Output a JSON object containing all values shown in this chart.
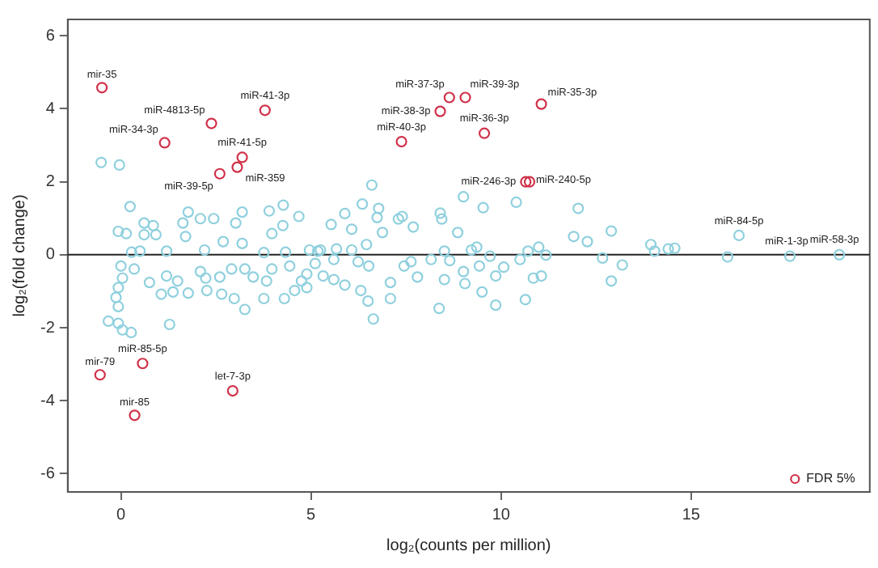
{
  "chart_data": {
    "type": "scatter",
    "xlabel": "log₂(counts per million)",
    "ylabel": "log₂(fold change)",
    "xlim": [
      -1.4,
      19.7
    ],
    "ylim": [
      -6.5,
      6.45
    ],
    "xticks": [
      0,
      5,
      10,
      15
    ],
    "yticks": [
      -6,
      -4,
      -2,
      0,
      2,
      4,
      6
    ],
    "grid": false,
    "marker": "circle",
    "legend": "bottom right",
    "ref_lines": [
      {
        "axis": "y",
        "value": 0,
        "color": "#222222"
      }
    ],
    "series": [
      {
        "color": "#8fd0de",
        "x": [
          -0.52,
          -0.04,
          0.24,
          -0.07,
          0.14,
          0.61,
          0.85,
          0.61,
          0.92,
          1.63,
          1.77,
          1.7,
          2.09,
          2.44,
          3.02,
          3.19,
          3.9,
          4.27,
          4.68,
          4.26,
          3.97,
          2.69,
          3.19,
          0.28,
          0.5,
          1.2,
          2.2,
          3.76,
          4.33,
          4.96,
          5.18,
          0,
          0.04,
          -0.07,
          -0.13,
          -0.07,
          -0.33,
          -0.07,
          0.04,
          0.27,
          0.35,
          0.75,
          1.06,
          1.28,
          1.2,
          1.49,
          1.37,
          1.77,
          2.09,
          2.23,
          2.6,
          2.26,
          2.65,
          2.98,
          3.26,
          2.91,
          3.26,
          3.48,
          3.76,
          3.97,
          3.83,
          4.3,
          4.44,
          4.75,
          4.57,
          4.89,
          5.11,
          4.89,
          6.6,
          6.35,
          6.78,
          5.89,
          6.74,
          7.3,
          7.4,
          5.53,
          6.07,
          6.88,
          7.69,
          8.4,
          8.44,
          9.01,
          9.53,
          10.4,
          8.86,
          5.25,
          5.67,
          6.07,
          6.46,
          8.51,
          9.22,
          9.36,
          9.71,
          10.71,
          10.99,
          11.18,
          5.6,
          5.6,
          5.89,
          5.32,
          6.24,
          6.52,
          6.31,
          6.5,
          6.64,
          7.09,
          7.45,
          7.63,
          7.8,
          7.09,
          8.16,
          8.51,
          8.65,
          9.01,
          9.05,
          8.37,
          9.43,
          9.5,
          9.86,
          9.86,
          10.07,
          10.5,
          10.85,
          11.06,
          10.64,
          12.03,
          12.9,
          11.91,
          12.27,
          13.94,
          14.04,
          14.4,
          14.57,
          15.96,
          12.67,
          13.19,
          12.9,
          16.26,
          17.6,
          18.9
        ],
        "values": [
          2.53,
          2.46,
          1.32,
          0.64,
          0.58,
          0.87,
          0.8,
          0.55,
          0.55,
          0.87,
          1.17,
          0.5,
          0.99,
          0.99,
          0.87,
          1.17,
          1.2,
          1.36,
          1.05,
          0.8,
          0.58,
          0.36,
          0.31,
          0.07,
          0.1,
          0.1,
          0.13,
          0.06,
          0.07,
          0.13,
          0.1,
          -0.31,
          -0.64,
          -0.9,
          -1.17,
          -1.42,
          -1.82,
          -1.88,
          -2.06,
          -2.13,
          -0.39,
          -0.76,
          -1.08,
          -1.91,
          -0.58,
          -0.72,
          -1.02,
          -1.05,
          -0.46,
          -0.64,
          -0.61,
          -0.98,
          -1.08,
          -1.2,
          -1.5,
          -0.39,
          -0.39,
          -0.61,
          -1.2,
          -0.39,
          -0.72,
          -1.2,
          -0.31,
          -0.72,
          -0.98,
          -0.9,
          -0.24,
          -0.53,
          1.91,
          1.39,
          1.27,
          1.13,
          1.02,
          0.98,
          1.05,
          0.83,
          0.7,
          0.61,
          0.76,
          1.14,
          0.98,
          1.59,
          1.29,
          1.44,
          0.61,
          0.13,
          0.16,
          0.13,
          0.28,
          0.1,
          0.13,
          0.21,
          -0.04,
          0.1,
          0.21,
          -0.01,
          -0.13,
          -0.68,
          -0.83,
          -0.58,
          -0.19,
          -0.31,
          -0.98,
          -1.27,
          -1.76,
          -0.76,
          -0.31,
          -0.19,
          -0.61,
          -1.2,
          -0.13,
          -0.68,
          -0.16,
          -0.46,
          -0.79,
          -1.47,
          -0.31,
          -1.02,
          -1.38,
          -0.58,
          -0.34,
          -0.13,
          -0.64,
          -0.58,
          -1.23,
          1.27,
          0.65,
          0.5,
          0.36,
          0.28,
          0.1,
          0.16,
          0.18,
          -0.06,
          -0.09,
          -0.28,
          -0.72,
          0.53,
          -0.04,
          0.0
        ]
      },
      {
        "name": "FDR 5%",
        "color": "#d03048",
        "x": [
          -0.5,
          1.15,
          2.38,
          3.79,
          3.19,
          3.06,
          2.6,
          7.38,
          8.4,
          8.64,
          9.06,
          9.56,
          11.06,
          10.65,
          10.75,
          -0.55,
          0.57,
          0.36,
          2.94
        ],
        "values": [
          4.58,
          3.07,
          3.6,
          3.96,
          2.67,
          2.4,
          2.22,
          3.1,
          3.93,
          4.31,
          4.31,
          3.33,
          4.13,
          2.0,
          2.0,
          -3.29,
          -2.98,
          -4.4,
          -3.73
        ]
      }
    ],
    "annotations": [
      {
        "text": "mir-35",
        "x": -0.5,
        "y": 4.58
      },
      {
        "text": "miR-34-3p",
        "x": 1.15,
        "y": 3.07
      },
      {
        "text": "miR-4813-5p",
        "x": 2.38,
        "y": 3.6
      },
      {
        "text": "miR-41-3p",
        "x": 3.79,
        "y": 3.96
      },
      {
        "text": "miR-41-5p",
        "x": 3.19,
        "y": 2.67
      },
      {
        "text": "miR-359",
        "x": 3.06,
        "y": 2.4
      },
      {
        "text": "miR-39-5p",
        "x": 2.6,
        "y": 2.22
      },
      {
        "text": "miR-40-3p",
        "x": 7.38,
        "y": 3.1
      },
      {
        "text": "miR-38-3p",
        "x": 8.4,
        "y": 3.93
      },
      {
        "text": "miR-37-3p",
        "x": 8.64,
        "y": 4.31
      },
      {
        "text": "miR-39-3p",
        "x": 9.06,
        "y": 4.31
      },
      {
        "text": "miR-36-3p",
        "x": 9.56,
        "y": 3.33
      },
      {
        "text": "miR-35-3p",
        "x": 11.06,
        "y": 4.13
      },
      {
        "text": "miR-246-3p",
        "x": 10.65,
        "y": 2.0
      },
      {
        "text": "miR-240-5p",
        "x": 10.75,
        "y": 2.0
      },
      {
        "text": "miR-84-5p",
        "x": 16.26,
        "y": 0.53
      },
      {
        "text": "miR-1-3p",
        "x": 17.6,
        "y": -0.04
      },
      {
        "text": "miR-58-3p",
        "x": 18.9,
        "y": 0.0
      },
      {
        "text": "mir-79",
        "x": -0.55,
        "y": -3.29
      },
      {
        "text": "miR-85-5p",
        "x": 0.57,
        "y": -2.98
      },
      {
        "text": "mir-85",
        "x": 0.36,
        "y": -4.4
      },
      {
        "text": "let-7-3p",
        "x": 2.94,
        "y": -3.73
      }
    ]
  }
}
